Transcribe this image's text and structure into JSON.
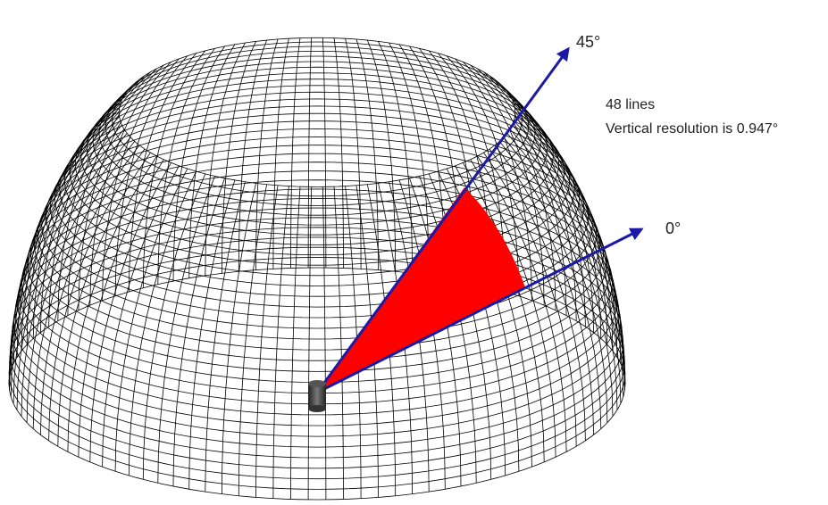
{
  "annotations": {
    "angle_top": "45°",
    "angle_bottom": "0°",
    "line_count": "48 lines",
    "resolution": "Vertical resolution is 0.947°"
  }
}
